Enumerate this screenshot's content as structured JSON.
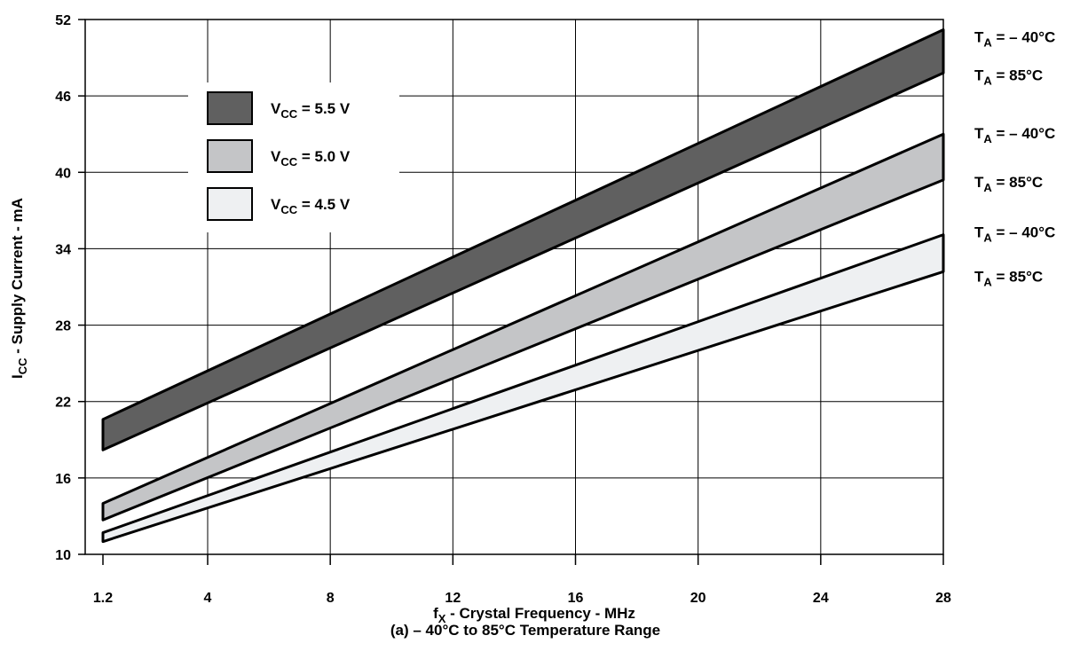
{
  "chart_data": {
    "type": "area",
    "xlabel": {
      "main": "f",
      "sub": "X",
      "rest": " - Crystal Frequency - MHz"
    },
    "caption": "(a) – 40°C to 85°C Temperature Range",
    "ylabel": {
      "main": "I",
      "sub": "CC",
      "rest": " - Supply Current - mA"
    },
    "xlim": [
      1.2,
      28
    ],
    "ylim": [
      10,
      52
    ],
    "x_ticks": [
      1.2,
      4,
      8,
      12,
      16,
      20,
      24,
      28
    ],
    "x_tick_labels": [
      "1.2",
      "4",
      "8",
      "12",
      "16",
      "20",
      "24",
      "28"
    ],
    "y_ticks": [
      10,
      16,
      22,
      28,
      34,
      40,
      46,
      52
    ],
    "grid": true,
    "legend_position": "upper-left",
    "series": [
      {
        "name": "VCC = 5.5 V",
        "label_main": "V",
        "label_sub": "CC",
        "label_rest": " = 5.5 V",
        "color": "#606060",
        "x": [
          1.2,
          28
        ],
        "upper": [
          20.6,
          51.2
        ],
        "lower": [
          18.2,
          47.8
        ]
      },
      {
        "name": "VCC = 5.0 V",
        "label_main": "V",
        "label_sub": "CC",
        "label_rest": " = 5.0 V",
        "color": "#c4c5c7",
        "x": [
          1.2,
          28
        ],
        "upper": [
          14.0,
          43.0
        ],
        "lower": [
          12.7,
          39.4
        ]
      },
      {
        "name": "VCC = 4.5 V",
        "label_main": "V",
        "label_sub": "CC",
        "label_rest": " = 4.5 V",
        "color": "#eef0f2",
        "x": [
          1.2,
          28
        ],
        "upper": [
          11.7,
          35.1
        ],
        "lower": [
          11.0,
          32.2
        ]
      }
    ],
    "annotations": [
      {
        "main": "T",
        "sub": "A",
        "rest": " = – 40°C",
        "y": 51.2
      },
      {
        "main": "T",
        "sub": "A",
        "rest": " = 85°C",
        "y": 47.8
      },
      {
        "main": "T",
        "sub": "A",
        "rest": " = – 40°C",
        "y": 43.0
      },
      {
        "main": "T",
        "sub": "A",
        "rest": " = 85°C",
        "y": 39.4
      },
      {
        "main": "T",
        "sub": "A",
        "rest": " = – 40°C",
        "y": 35.1
      },
      {
        "main": "T",
        "sub": "A",
        "rest": " =  85°C",
        "y": 32.2
      }
    ]
  }
}
